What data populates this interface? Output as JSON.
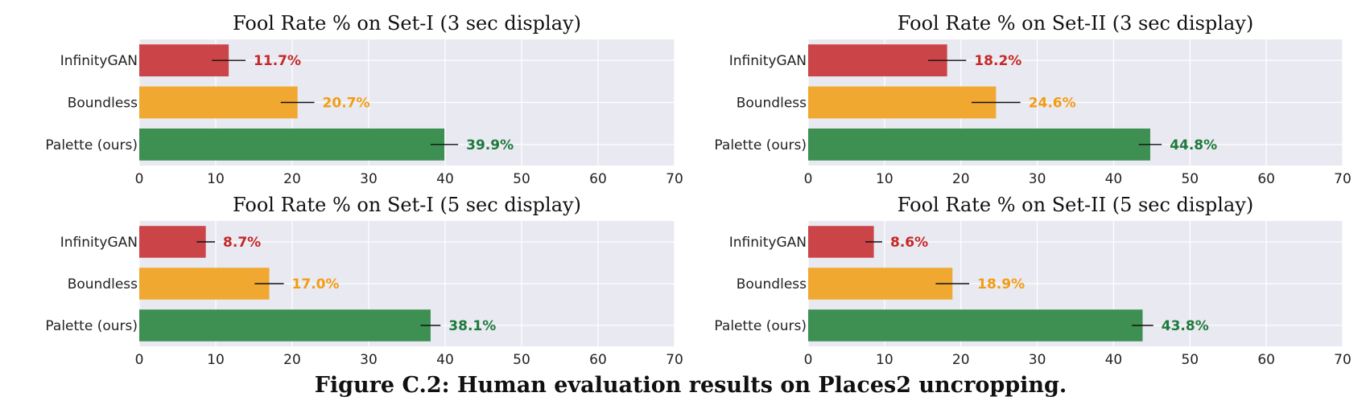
{
  "caption": "Figure C.2: Human evaluation results on Places2 uncropping.",
  "colors": {
    "infinitygan": "#cb4447",
    "boundless": "#f0a830",
    "palette": "#3d8f52",
    "infinitygan_label": "#c62828",
    "boundless_label": "#f39c12",
    "palette_label": "#1e7a3c",
    "panel_bg": "#e9e9f1",
    "grid": "#ffffff",
    "error_bar": "#111111"
  },
  "chart_data": [
    {
      "type": "bar",
      "orientation": "horizontal",
      "title": "Fool Rate % on Set-I (3 sec display)",
      "categories": [
        "InfinityGAN",
        "Boundless",
        "Palette (ours)"
      ],
      "values": [
        11.7,
        20.7,
        39.9
      ],
      "labels": [
        "11.7%",
        "20.7%",
        "39.9%"
      ],
      "errors": [
        2.2,
        2.2,
        1.8
      ],
      "xlim": [
        0,
        70
      ],
      "xticks": [
        0,
        10,
        20,
        30,
        40,
        50,
        60,
        70
      ]
    },
    {
      "type": "bar",
      "orientation": "horizontal",
      "title": "Fool Rate % on Set-II (3 sec display)",
      "categories": [
        "InfinityGAN",
        "Boundless",
        "Palette (ours)"
      ],
      "values": [
        18.2,
        24.6,
        44.8
      ],
      "labels": [
        "18.2%",
        "24.6%",
        "44.8%"
      ],
      "errors": [
        2.5,
        3.2,
        1.5
      ],
      "xlim": [
        0,
        70
      ],
      "xticks": [
        0,
        10,
        20,
        30,
        40,
        50,
        60,
        70
      ]
    },
    {
      "type": "bar",
      "orientation": "horizontal",
      "title": "Fool Rate % on Set-I (5 sec display)",
      "categories": [
        "InfinityGAN",
        "Boundless",
        "Palette (ours)"
      ],
      "values": [
        8.7,
        17.0,
        38.1
      ],
      "labels": [
        "8.7%",
        "17.0%",
        "38.1%"
      ],
      "errors": [
        1.2,
        1.9,
        1.3
      ],
      "xlim": [
        0,
        70
      ],
      "xticks": [
        0,
        10,
        20,
        30,
        40,
        50,
        60,
        70
      ]
    },
    {
      "type": "bar",
      "orientation": "horizontal",
      "title": "Fool Rate % on Set-II (5 sec display)",
      "categories": [
        "InfinityGAN",
        "Boundless",
        "Palette (ours)"
      ],
      "values": [
        8.6,
        18.9,
        43.8
      ],
      "labels": [
        "8.6%",
        "18.9%",
        "43.8%"
      ],
      "errors": [
        1.1,
        2.2,
        1.4
      ],
      "xlim": [
        0,
        70
      ],
      "xticks": [
        0,
        10,
        20,
        30,
        40,
        50,
        60,
        70
      ]
    }
  ]
}
